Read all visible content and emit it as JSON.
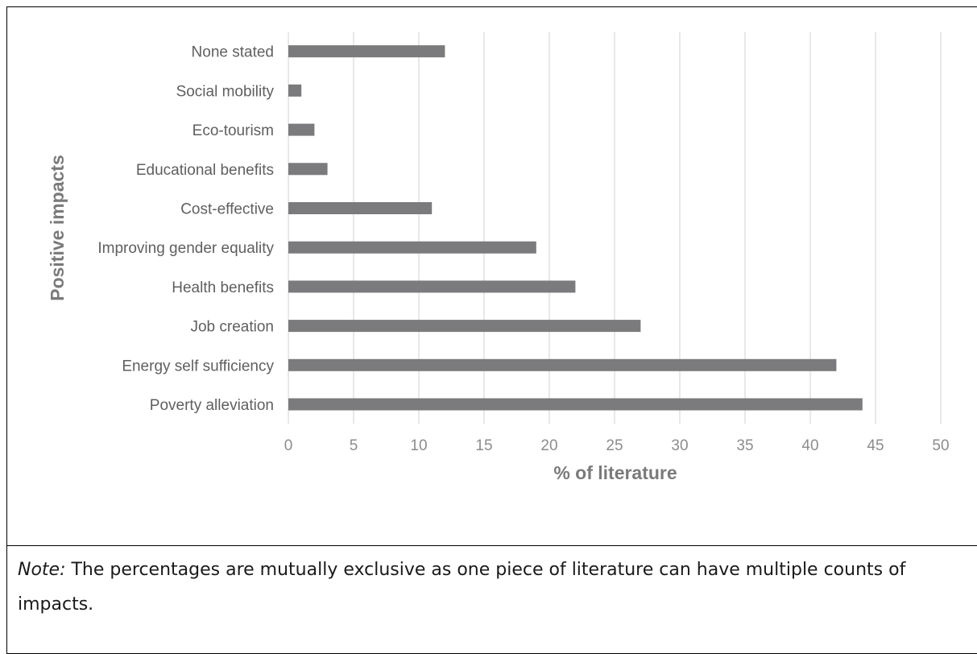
{
  "chart_data": {
    "type": "bar",
    "orientation": "horizontal",
    "categories": [
      "Poverty alleviation",
      "Energy self sufficiency",
      "Job creation",
      "Health benefits",
      "Improving gender equality",
      "Cost-effective",
      "Educational benefits",
      "Eco-tourism",
      "Social mobility",
      "None stated"
    ],
    "values": [
      44,
      42,
      27,
      22,
      19,
      11,
      3,
      2,
      1,
      12
    ],
    "xlabel": "% of literature",
    "ylabel": "Positive impacts",
    "xlim": [
      0,
      50
    ],
    "xticks": [
      "0",
      "5",
      "10",
      "15",
      "20",
      "25",
      "30",
      "35",
      "40",
      "45",
      "50"
    ],
    "grid": "vertical",
    "bar_color": "#7b7b7d",
    "grid_color": "#d9d9d9"
  },
  "note": {
    "label": "Note:",
    "text": " The percentages are mutually exclusive as one piece of literature can have multiple counts of impacts."
  }
}
